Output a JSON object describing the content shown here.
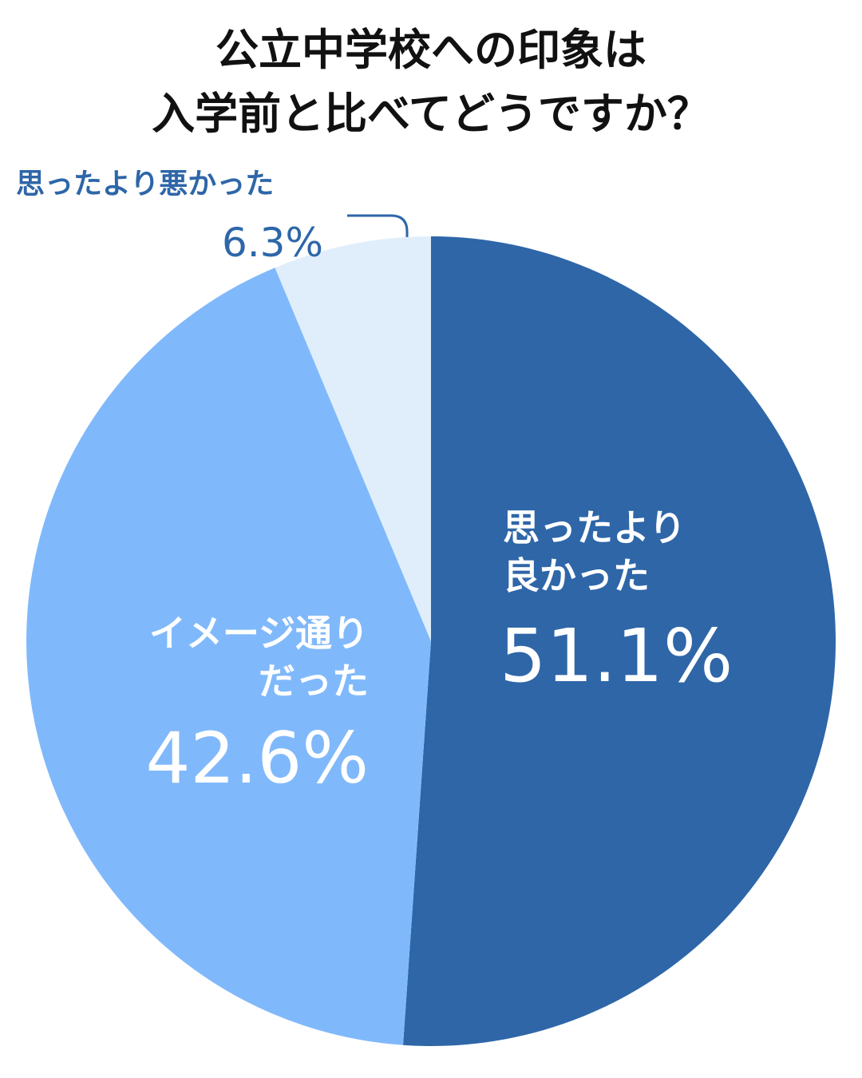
{
  "chart_data": {
    "type": "pie",
    "title": [
      "公立中学校への印象は",
      "入学前と比べてどうですか？"
    ],
    "categories": [
      "思ったより\n良かった",
      "イメージ通り\nだった",
      "思ったより悪かった"
    ],
    "values": [
      51.1,
      42.6,
      6.3
    ],
    "value_labels": [
      "51.1%",
      "42.6%",
      "6.3%"
    ],
    "colors": [
      "#2e66a8",
      "#80b9fb",
      "#e0eefc"
    ]
  }
}
